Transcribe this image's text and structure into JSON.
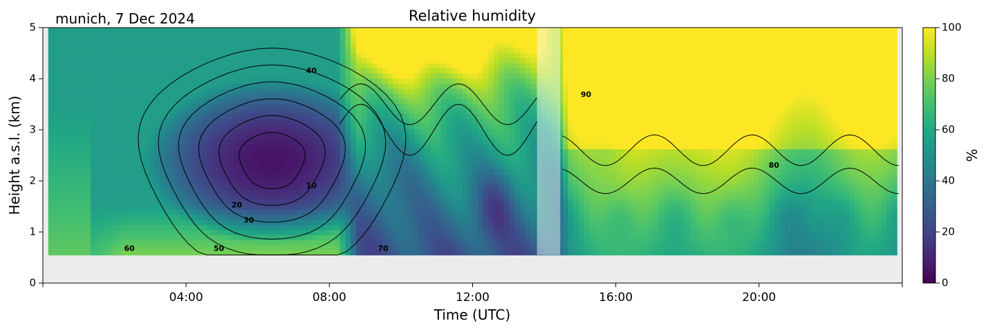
{
  "chart_data": {
    "type": "heatmap",
    "title": "Relative humidity",
    "subtitle": "munich, 7 Dec 2024",
    "xlabel": "Time (UTC)",
    "ylabel": "Height a.s.l. (km)",
    "xlim": [
      "00:00",
      "24:00"
    ],
    "ylim": [
      0,
      5
    ],
    "x_ticks": [
      "04:00",
      "08:00",
      "12:00",
      "16:00",
      "20:00"
    ],
    "y_ticks": [
      "0",
      "1",
      "2",
      "3",
      "4",
      "5"
    ],
    "colorbar": {
      "label": "%",
      "range": [
        0,
        100
      ],
      "ticks": [
        "0",
        "20",
        "40",
        "60",
        "80",
        "100"
      ],
      "colormap": "viridis"
    },
    "data_height_range_km": [
      0.55,
      5
    ],
    "missing_data_color": "#ececec",
    "contour_levels": [
      10,
      20,
      30,
      40,
      50,
      60,
      70,
      80,
      90
    ],
    "contour_labels": [
      {
        "text": "60",
        "time": "02:25",
        "height_km": 0.67
      },
      {
        "text": "50",
        "time": "04:55",
        "height_km": 0.67
      },
      {
        "text": "70",
        "time": "09:30",
        "height_km": 0.67
      },
      {
        "text": "30",
        "time": "05:45",
        "height_km": 1.22
      },
      {
        "text": "20",
        "time": "05:25",
        "height_km": 1.52
      },
      {
        "text": "10",
        "time": "07:30",
        "height_km": 1.9
      },
      {
        "text": "40",
        "time": "07:30",
        "height_km": 4.15
      },
      {
        "text": "90",
        "time": "15:10",
        "height_km": 3.68
      },
      {
        "text": "80",
        "time": "20:25",
        "height_km": 2.3
      }
    ]
  }
}
